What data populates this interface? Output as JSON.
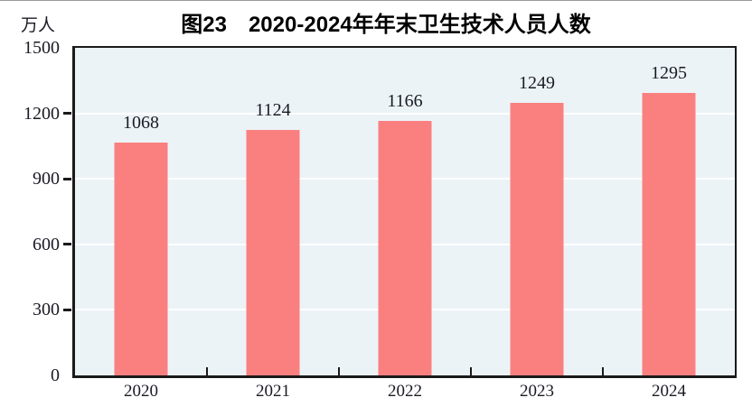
{
  "chart_data": {
    "type": "bar",
    "title": "图23　2020-2024年年末卫生技术人员人数",
    "unit_label": "万人",
    "categories": [
      "2020",
      "2021",
      "2022",
      "2023",
      "2024"
    ],
    "values": [
      1068,
      1124,
      1166,
      1249,
      1295
    ],
    "ylim": [
      0,
      1500
    ],
    "ytick_step": 300,
    "ytick_labels": [
      "0",
      "300",
      "600",
      "900",
      "1200",
      "1500"
    ],
    "grid": "horizontal-white",
    "legend": "none",
    "colors": {
      "bar": "#FA8080",
      "plot_bg": "#ECF3F7",
      "gridline": "#FFFFFF",
      "axis": "#1A1A1A",
      "text": "#1A1A24",
      "title_text": "#000000"
    }
  }
}
